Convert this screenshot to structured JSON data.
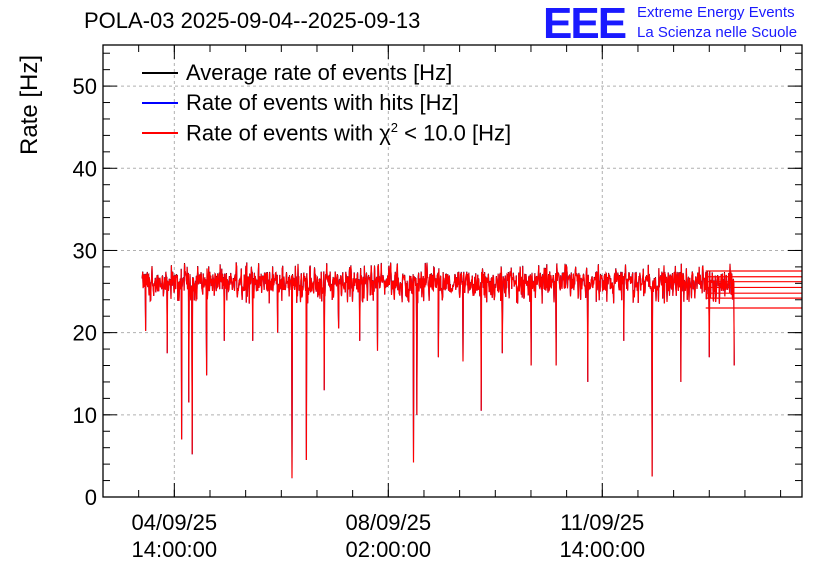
{
  "header": {
    "title": "POLA-03 2025-09-04--2025-09-13",
    "logo_mark": "EEE",
    "logo_line1": "Extreme Energy Events",
    "logo_line2": "La Scienza nelle Scuole"
  },
  "colors": {
    "average": "#000000",
    "hits": "#0000ff",
    "chi2": "#ff0000",
    "logo": "#1a1aff",
    "grid": "#b0b0b0"
  },
  "chart_data": {
    "type": "line",
    "ylabel": "Rate [Hz]",
    "xlabel": "",
    "ylim": [
      0,
      55
    ],
    "yticks": [
      "0",
      "10",
      "20",
      "30",
      "40",
      "50"
    ],
    "xlim_days": [
      0,
      9.8
    ],
    "xticks": [
      {
        "day": 1.0,
        "label1": "04/09/25",
        "label2": "14:00:00"
      },
      {
        "day": 4.0,
        "label1": "08/09/25",
        "label2": "02:00:00"
      },
      {
        "day": 7.0,
        "label1": "11/09/25",
        "label2": "14:00:00"
      }
    ],
    "grid": true,
    "legend_position": "top-left",
    "series": [
      {
        "name": "Average rate of events [Hz]",
        "color": "#000000"
      },
      {
        "name": "Rate of events with hits [Hz]",
        "color": "#0000ff"
      },
      {
        "name_prefix": "Rate of events with ",
        "name_symbol": "χ",
        "name_sup": "2",
        "name_suffix": " < 10.0 [Hz]",
        "color": "#ff0000"
      }
    ],
    "data_start_day": 0.55,
    "data_end_day": 8.85,
    "baseline_mean": 26.2,
    "baseline_band": [
      23.5,
      28.5
    ],
    "dips": [
      {
        "day": 0.6,
        "value": 20.2
      },
      {
        "day": 0.9,
        "value": 17.5
      },
      {
        "day": 1.1,
        "value": 7.0
      },
      {
        "day": 1.2,
        "value": 11.5
      },
      {
        "day": 1.25,
        "value": 5.2
      },
      {
        "day": 1.45,
        "value": 14.8
      },
      {
        "day": 1.7,
        "value": 19.0
      },
      {
        "day": 2.1,
        "value": 19.0
      },
      {
        "day": 2.45,
        "value": 20.0
      },
      {
        "day": 2.65,
        "value": 2.3
      },
      {
        "day": 2.85,
        "value": 4.5
      },
      {
        "day": 3.1,
        "value": 13.0
      },
      {
        "day": 3.3,
        "value": 20.5
      },
      {
        "day": 3.6,
        "value": 19.0
      },
      {
        "day": 3.85,
        "value": 17.8
      },
      {
        "day": 4.35,
        "value": 4.2
      },
      {
        "day": 4.4,
        "value": 10.0
      },
      {
        "day": 4.7,
        "value": 17.0
      },
      {
        "day": 5.05,
        "value": 16.5
      },
      {
        "day": 5.3,
        "value": 10.5
      },
      {
        "day": 5.6,
        "value": 17.5
      },
      {
        "day": 6.0,
        "value": 16.0
      },
      {
        "day": 6.35,
        "value": 16.0
      },
      {
        "day": 6.8,
        "value": 14.0
      },
      {
        "day": 7.3,
        "value": 19.0
      },
      {
        "day": 7.7,
        "value": 2.5
      },
      {
        "day": 8.1,
        "value": 14.0
      },
      {
        "day": 8.5,
        "value": 17.0
      },
      {
        "day": 8.85,
        "value": 16.0
      }
    ],
    "tail_levels": [
      27.5,
      26.8,
      26.2,
      25.5,
      24.8,
      24.2,
      23.0
    ]
  }
}
